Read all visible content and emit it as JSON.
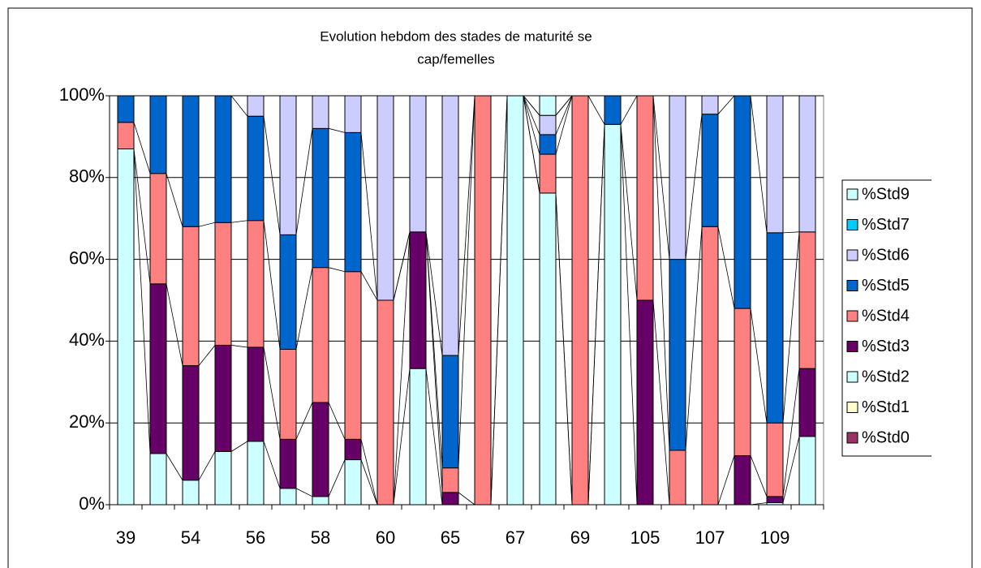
{
  "chart_data": {
    "type": "stacked_bar_100",
    "title": [
      "Evolution hebdom des stades de maturité se",
      "cap/femelles"
    ],
    "categories": [
      "39",
      null,
      "54",
      null,
      "56",
      null,
      "58",
      null,
      "60",
      null,
      "65",
      null,
      "67",
      null,
      "69",
      null,
      "105",
      null,
      "107",
      null,
      "109",
      null
    ],
    "series": [
      {
        "name": "%Std9",
        "color": "#ccffff",
        "values": [
          0,
          0,
          0,
          0,
          0,
          0,
          0,
          0,
          0,
          0,
          0,
          0,
          0,
          4.8,
          0,
          0,
          0,
          0,
          0,
          0,
          0,
          0
        ]
      },
      {
        "name": "%Std7",
        "color": "#00ccff",
        "values": [
          0,
          0,
          0,
          0,
          0,
          0,
          0,
          0,
          0,
          0,
          0,
          0,
          0,
          0,
          0,
          0,
          0,
          0,
          0,
          0,
          0,
          0
        ]
      },
      {
        "name": "%Std6",
        "color": "#ccccff",
        "values": [
          0,
          0,
          0,
          0,
          5,
          34,
          8,
          9,
          50,
          33.3,
          63.5,
          0,
          0,
          4.7,
          0,
          0,
          0,
          40,
          4.5,
          0,
          33.5,
          33.3
        ]
      },
      {
        "name": "%Std5",
        "color": "#0066cc",
        "values": [
          6.5,
          19,
          32,
          31,
          25.5,
          28,
          34,
          34,
          0,
          0,
          27.5,
          0,
          0,
          4.8,
          0,
          7,
          0,
          46.7,
          27.5,
          52,
          46.5,
          0
        ]
      },
      {
        "name": "%Std4",
        "color": "#ff8080",
        "values": [
          6.5,
          27,
          34,
          30,
          31,
          22,
          33,
          41,
          50,
          0,
          6,
          100,
          0,
          9.5,
          100,
          0,
          50,
          13.3,
          68,
          36,
          18,
          33.4
        ]
      },
      {
        "name": "%Std3",
        "color": "#660066",
        "values": [
          0,
          41.5,
          28,
          26,
          23,
          12,
          23,
          5,
          0,
          33.4,
          3,
          0,
          0,
          0,
          0,
          0,
          50,
          0,
          0,
          12,
          1.5,
          16.6
        ]
      },
      {
        "name": "%Std2",
        "color": "#ccffff",
        "values": [
          87,
          12.5,
          6,
          13,
          15.5,
          4,
          2,
          11,
          0,
          33.3,
          0,
          0,
          100,
          76.2,
          0,
          93,
          0,
          0,
          0,
          0,
          0.5,
          16.7
        ]
      },
      {
        "name": "%Std1",
        "color": "#ffffcc",
        "values": [
          0,
          0,
          0,
          0,
          0,
          0,
          0,
          0,
          0,
          0,
          0,
          0,
          0,
          0,
          0,
          0,
          0,
          0,
          0,
          0,
          0,
          0
        ]
      },
      {
        "name": "%Std0",
        "color": "#993366",
        "values": [
          0,
          0,
          0,
          0,
          0,
          0,
          0,
          0,
          0,
          0,
          0,
          0,
          0,
          0,
          0,
          0,
          0,
          0,
          0,
          0,
          0,
          0
        ]
      }
    ],
    "ylim": [
      0,
      100
    ],
    "yticks": [
      {
        "value": 0,
        "label": "0%"
      },
      {
        "value": 20,
        "label": "20%"
      },
      {
        "value": 40,
        "label": "40%"
      },
      {
        "value": 60,
        "label": "60%"
      },
      {
        "value": 80,
        "label": "80%"
      },
      {
        "value": 100,
        "label": "100%"
      }
    ],
    "grid": true,
    "legend": "right"
  }
}
